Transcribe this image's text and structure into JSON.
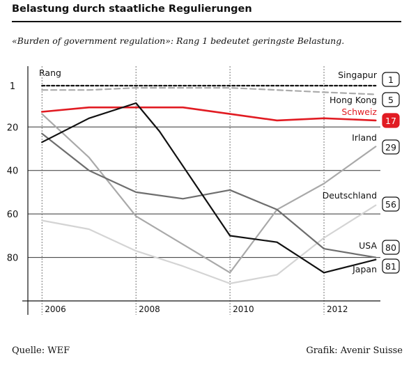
{
  "title": "Belastung durch staatliche Regulierungen",
  "subtitle": "«Burden of government regulation»: Rang 1 bedeutet geringste Belastung.",
  "source": "Quelle: WEF",
  "credit": "Grafik: Avenir Suisse",
  "chart_data": {
    "type": "line",
    "ylabel": "Rang",
    "y_reversed": true,
    "ylim": [
      1,
      100
    ],
    "xlim": [
      2005.7,
      2013.2
    ],
    "y_ticks": [
      1,
      20,
      40,
      60,
      80
    ],
    "x_ticks": [
      2006,
      2008,
      2010,
      2012
    ],
    "grid": true,
    "series": [
      {
        "name": "Singapur",
        "end_rank": 1,
        "color": "#111111",
        "dashed": true,
        "label_red": false,
        "badge_filled": false,
        "x": [
          2006,
          2013.1
        ],
        "y": [
          1,
          1
        ]
      },
      {
        "name": "Hong Kong",
        "end_rank": 5,
        "color": "#aaaaaa",
        "dashed": true,
        "label_red": false,
        "badge_filled": false,
        "x": [
          2006,
          2007,
          2008,
          2009,
          2010,
          2011,
          2012,
          2013.1
        ],
        "y": [
          3,
          3,
          2,
          2,
          2,
          3,
          4,
          5
        ]
      },
      {
        "name": "Schweiz",
        "end_rank": 17,
        "color": "#e11b22",
        "dashed": false,
        "label_red": true,
        "badge_filled": true,
        "x": [
          2006,
          2007,
          2008,
          2009,
          2010,
          2011,
          2012,
          2013.1
        ],
        "y": [
          13,
          11,
          11,
          11,
          14,
          17,
          16,
          17
        ]
      },
      {
        "name": "Irland",
        "end_rank": 29,
        "color": "#a9a9a9",
        "dashed": false,
        "label_red": false,
        "badge_filled": false,
        "x": [
          2006,
          2007,
          2008,
          2009,
          2010,
          2011,
          2012,
          2013.1
        ],
        "y": [
          14,
          34,
          61,
          74,
          87,
          58,
          46,
          29
        ]
      },
      {
        "name": "Deutschland",
        "end_rank": 56,
        "color": "#d4d4d4",
        "dashed": false,
        "label_red": false,
        "badge_filled": false,
        "x": [
          2006,
          2007,
          2008,
          2009,
          2010,
          2011,
          2012,
          2013.1
        ],
        "y": [
          63,
          67,
          77,
          84,
          92,
          88,
          71,
          56
        ]
      },
      {
        "name": "USA",
        "end_rank": 80,
        "color": "#6e6e6e",
        "dashed": false,
        "label_red": false,
        "badge_filled": false,
        "x": [
          2006,
          2007,
          2008,
          2009,
          2010,
          2011,
          2012,
          2013.1
        ],
        "y": [
          23,
          40,
          50,
          53,
          49,
          58,
          76,
          80
        ]
      },
      {
        "name": "Japan",
        "end_rank": 81,
        "color": "#111111",
        "dashed": false,
        "label_red": false,
        "badge_filled": false,
        "x": [
          2006,
          2007,
          2008,
          2008.5,
          2010,
          2011,
          2012,
          2013.1
        ],
        "y": [
          27,
          16,
          9,
          22,
          70,
          73,
          87,
          81
        ]
      }
    ]
  }
}
